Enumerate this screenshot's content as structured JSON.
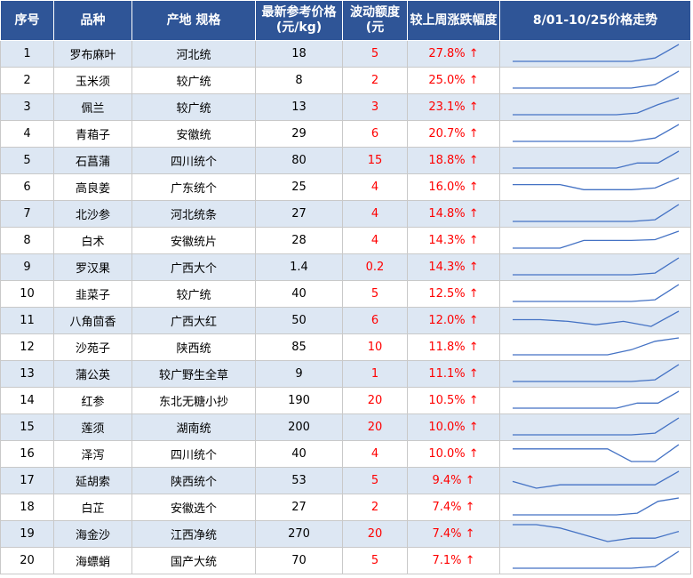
{
  "headers": [
    "序号",
    "品种",
    "产地 规格",
    "最新参考价格\n(元/kg)",
    "波动额度\n(元",
    "较上周涨跌幅度",
    "8/01-10/25价格走势"
  ],
  "rows": [
    {
      "no": "1",
      "name": "罗布麻叶",
      "spec": "河北统",
      "price": "18",
      "change": "5",
      "pct": "27.8% ↑",
      "trend": [
        0,
        0,
        0,
        0,
        0,
        0,
        0.2,
        1
      ]
    },
    {
      "no": "2",
      "name": "玉米须",
      "spec": "较广统",
      "price": "8",
      "change": "2",
      "pct": "25.0% ↑",
      "trend": [
        0,
        0,
        0,
        0,
        0,
        0,
        0.2,
        1
      ]
    },
    {
      "no": "3",
      "name": "佩兰",
      "spec": "较广统",
      "price": "13",
      "change": "3",
      "pct": "23.1% ↑",
      "trend": [
        0,
        0,
        0,
        0,
        0,
        0,
        0.1,
        0.6,
        1
      ]
    },
    {
      "no": "4",
      "name": "青葙子",
      "spec": "安徽统",
      "price": "29",
      "change": "6",
      "pct": "20.7% ↑",
      "trend": [
        0,
        0,
        0,
        0,
        0,
        0,
        0.2,
        1
      ]
    },
    {
      "no": "5",
      "name": "石菖蒲",
      "spec": "四川统个",
      "price": "80",
      "change": "15",
      "pct": "18.8% ↑",
      "trend": [
        0,
        0,
        0,
        0,
        0,
        0,
        0.3,
        0.3,
        1
      ]
    },
    {
      "no": "6",
      "name": "高良姜",
      "spec": "广东统个",
      "price": "25",
      "change": "4",
      "pct": "16.0% ↑",
      "trend": [
        0.6,
        0.6,
        0.6,
        0.3,
        0.3,
        0.3,
        0.4,
        1
      ]
    },
    {
      "no": "7",
      "name": "北沙参",
      "spec": "河北统条",
      "price": "27",
      "change": "4",
      "pct": "14.8% ↑",
      "trend": [
        0,
        0,
        0,
        0,
        0,
        0,
        0.1,
        1
      ]
    },
    {
      "no": "8",
      "name": "白术",
      "spec": "安徽统片",
      "price": "28",
      "change": "4",
      "pct": "14.3% ↑",
      "trend": [
        0,
        0,
        0,
        0.45,
        0.45,
        0.45,
        0.5,
        1
      ]
    },
    {
      "no": "9",
      "name": "罗汉果",
      "spec": "广西大个",
      "price": "1.4",
      "change": "0.2",
      "pct": "14.3% ↑",
      "trend": [
        0,
        0,
        0,
        0,
        0,
        0,
        0.1,
        1
      ]
    },
    {
      "no": "10",
      "name": "韭菜子",
      "spec": "较广统",
      "price": "40",
      "change": "5",
      "pct": "12.5% ↑",
      "trend": [
        0,
        0,
        0,
        0,
        0,
        0,
        0.1,
        1
      ]
    },
    {
      "no": "11",
      "name": "八角茴香",
      "spec": "广西大红",
      "price": "50",
      "change": "6",
      "pct": "12.0% ↑",
      "trend": [
        0.5,
        0.5,
        0.4,
        0.2,
        0.4,
        0.1,
        1
      ]
    },
    {
      "no": "12",
      "name": "沙苑子",
      "spec": "陕西统",
      "price": "85",
      "change": "10",
      "pct": "11.8% ↑",
      "trend": [
        0,
        0,
        0,
        0,
        0,
        0.3,
        0.8,
        1
      ]
    },
    {
      "no": "13",
      "name": "蒲公英",
      "spec": "较广野生全草",
      "price": "9",
      "change": "1",
      "pct": "11.1% ↑",
      "trend": [
        0,
        0,
        0,
        0,
        0,
        0,
        0.1,
        1
      ]
    },
    {
      "no": "14",
      "name": "红参",
      "spec": "东北无糖小抄",
      "price": "190",
      "change": "20",
      "pct": "10.5% ↑",
      "trend": [
        0,
        0,
        0,
        0,
        0,
        0,
        0.3,
        0.3,
        1
      ]
    },
    {
      "no": "15",
      "name": "莲须",
      "spec": "湖南统",
      "price": "200",
      "change": "20",
      "pct": "10.0% ↑",
      "trend": [
        0,
        0,
        0,
        0,
        0,
        0,
        0.1,
        1
      ]
    },
    {
      "no": "16",
      "name": "泽泻",
      "spec": "四川统个",
      "price": "40",
      "change": "4",
      "pct": "10.0% ↑",
      "trend": [
        0.75,
        0.75,
        0.75,
        0.75,
        0.75,
        0,
        0,
        1
      ]
    },
    {
      "no": "17",
      "name": "延胡索",
      "spec": "陕西统个",
      "price": "53",
      "change": "5",
      "pct": "9.4% ↑",
      "trend": [
        0.4,
        0,
        0.2,
        0.2,
        0.2,
        0.2,
        0.2,
        1
      ]
    },
    {
      "no": "18",
      "name": "白芷",
      "spec": "安徽选个",
      "price": "27",
      "change": "2",
      "pct": "7.4% ↑",
      "trend": [
        0,
        0,
        0,
        0,
        0,
        0,
        0.1,
        0.8,
        1
      ]
    },
    {
      "no": "19",
      "name": "海金沙",
      "spec": "江西净统",
      "price": "270",
      "change": "20",
      "pct": "7.4% ↑",
      "trend": [
        1,
        1,
        0.8,
        0.4,
        0,
        0.2,
        0.2,
        0.6
      ]
    },
    {
      "no": "20",
      "name": "海螵蛸",
      "spec": "国产大统",
      "price": "70",
      "change": "5",
      "pct": "7.1% ↑",
      "trend": [
        0,
        0,
        0,
        0,
        0,
        0,
        0.1,
        1
      ]
    }
  ],
  "colors": {
    "header_bg": "#2f5597",
    "stripe": "#dde7f3",
    "up": "#ff0000",
    "line": "#4472c4"
  }
}
